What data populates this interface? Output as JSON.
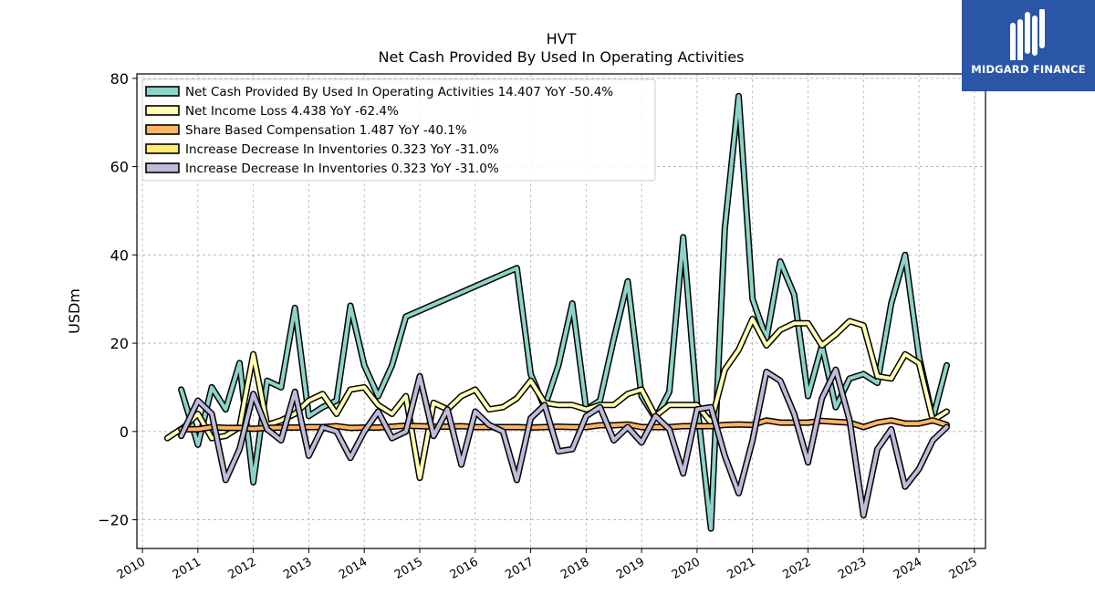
{
  "chart_data": {
    "type": "line",
    "title": "HVT",
    "subtitle": "Net Cash Provided By Used In Operating Activities",
    "ylabel": "USDm",
    "xlabel": "",
    "xlim": [
      2009.9,
      2025.2
    ],
    "ylim": [
      -26.5,
      81
    ],
    "yticks": [
      -20,
      0,
      20,
      40,
      60,
      80
    ],
    "xticks": [
      2010,
      2011,
      2012,
      2013,
      2014,
      2015,
      2016,
      2017,
      2018,
      2019,
      2020,
      2021,
      2022,
      2023,
      2024,
      2025
    ],
    "grid": true,
    "legend_position": "top-left",
    "series": [
      {
        "name": "Net Cash Provided By Used In Operating Activities  14.407 YoY -50.4%",
        "color": "#8dd3c7",
        "x": [
          2010.7,
          2011.0,
          2011.25,
          2011.5,
          2011.75,
          2012.0,
          2012.25,
          2012.5,
          2012.75,
          2013.0,
          2013.25,
          2013.5,
          2013.75,
          2014.0,
          2014.25,
          2014.5,
          2014.75,
          2016.75,
          2017.0,
          2017.25,
          2017.5,
          2017.75,
          2018.0,
          2018.25,
          2018.5,
          2018.75,
          2019.0,
          2019.25,
          2019.5,
          2019.75,
          2020.0,
          2020.25,
          2020.5,
          2020.75,
          2021.0,
          2021.25,
          2021.5,
          2021.75,
          2022.0,
          2022.25,
          2022.5,
          2022.75,
          2023.0,
          2023.25,
          2023.5,
          2023.75,
          2024.0,
          2024.25,
          2024.5
        ],
        "y": [
          9.5,
          -3,
          10,
          5,
          15.5,
          -11.5,
          11.5,
          10,
          28,
          3.5,
          5.5,
          7,
          28.5,
          15,
          8,
          15,
          26,
          37,
          13,
          5.5,
          15,
          29,
          5,
          7,
          21,
          34,
          8,
          3,
          9,
          44,
          6,
          -22,
          46,
          76,
          30,
          21,
          38.5,
          31,
          8,
          19.5,
          5.5,
          12,
          13,
          11,
          29,
          40,
          17,
          3,
          15
        ]
      },
      {
        "name": "Net Income Loss  4.438 YoY -62.4%",
        "color": "#ffffb3",
        "x": [
          2010.45,
          2010.75,
          2011.0,
          2011.25,
          2011.5,
          2011.75,
          2012.0,
          2012.25,
          2012.5,
          2012.75,
          2013.0,
          2013.25,
          2013.5,
          2013.75,
          2014.0,
          2014.25,
          2014.5,
          2014.75,
          2015.0,
          2015.25,
          2015.5,
          2015.75,
          2016.0,
          2016.25,
          2016.5,
          2016.75,
          2017.0,
          2017.25,
          2017.5,
          2017.75,
          2018.0,
          2018.25,
          2018.5,
          2018.75,
          2019.0,
          2019.25,
          2019.5,
          2019.75,
          2020.0,
          2020.25,
          2020.5,
          2020.75,
          2021.0,
          2021.25,
          2021.5,
          2021.75,
          2022.0,
          2022.25,
          2022.5,
          2022.75,
          2023.0,
          2023.25,
          2023.5,
          2023.75,
          2024.0,
          2024.25,
          2024.5
        ],
        "y": [
          -1.5,
          1,
          4,
          -1.5,
          -1,
          1,
          17.5,
          1.5,
          2.5,
          4,
          7,
          8.5,
          4,
          9.5,
          10,
          6,
          4,
          8,
          -10.5,
          6.5,
          5,
          8,
          9.5,
          5,
          5.5,
          7.5,
          11.5,
          6.5,
          6,
          6,
          5,
          6,
          6,
          8.5,
          9.5,
          3.5,
          6,
          6,
          6,
          2,
          14,
          18.5,
          25.5,
          19.5,
          23,
          24.5,
          24.5,
          19.5,
          22,
          25,
          24,
          12.5,
          12,
          17.5,
          15.5,
          2.5,
          4.5
        ]
      },
      {
        "name": "Share Based Compensation  1.487 YoY -40.1%",
        "color": "#fdb462",
        "x": [
          2010.7,
          2011.0,
          2011.25,
          2011.5,
          2011.75,
          2012.0,
          2012.25,
          2012.5,
          2012.75,
          2013.0,
          2013.25,
          2013.5,
          2013.75,
          2014.0,
          2014.25,
          2014.5,
          2014.75,
          2015.0,
          2015.25,
          2015.5,
          2015.75,
          2016.0,
          2016.25,
          2016.5,
          2016.75,
          2017.0,
          2017.25,
          2017.5,
          2017.75,
          2018.0,
          2018.25,
          2018.5,
          2018.75,
          2019.0,
          2019.25,
          2019.5,
          2019.75,
          2020.0,
          2020.25,
          2020.5,
          2020.75,
          2021.0,
          2021.25,
          2021.5,
          2021.75,
          2022.0,
          2022.25,
          2022.5,
          2022.75,
          2023.0,
          2023.25,
          2023.5,
          2023.75,
          2024.0,
          2024.25,
          2024.5
        ],
        "y": [
          0.5,
          0.5,
          1,
          0.8,
          0.8,
          0.6,
          0.8,
          0.9,
          0.9,
          1,
          1,
          1.2,
          0.8,
          0.9,
          0.9,
          1.1,
          1.3,
          1.2,
          1.1,
          1.1,
          1.2,
          1,
          1,
          1,
          1,
          0.9,
          1,
          1.1,
          1,
          1,
          1.4,
          1.4,
          1.6,
          1,
          1,
          1,
          1.2,
          1.2,
          1.2,
          1.5,
          1.6,
          1.5,
          2.5,
          2,
          2,
          2,
          2.4,
          2.2,
          2,
          1,
          2,
          2.5,
          1.8,
          1.8,
          2.5,
          1.5
        ]
      },
      {
        "name": "Increase Decrease In Inventories  0.323 YoY -31.0%",
        "color": "#ffed6f",
        "x": [],
        "y": []
      },
      {
        "name": "Increase Decrease In Inventories  0.323 YoY -31.0%",
        "color": "#bebada",
        "x": [
          2010.7,
          2011.0,
          2011.25,
          2011.5,
          2011.75,
          2012.0,
          2012.25,
          2012.5,
          2012.75,
          2013.0,
          2013.25,
          2013.5,
          2013.75,
          2014.0,
          2014.25,
          2014.5,
          2014.75,
          2015.0,
          2015.25,
          2015.5,
          2015.75,
          2016.0,
          2016.25,
          2016.5,
          2016.75,
          2017.0,
          2017.25,
          2017.5,
          2017.75,
          2018.0,
          2018.25,
          2018.5,
          2018.75,
          2019.0,
          2019.25,
          2019.5,
          2019.75,
          2020.0,
          2020.25,
          2020.5,
          2020.75,
          2021.0,
          2021.25,
          2021.5,
          2021.75,
          2022.0,
          2022.25,
          2022.5,
          2022.75,
          2023.0,
          2023.25,
          2023.5,
          2023.75,
          2024.0,
          2024.25,
          2024.5
        ],
        "y": [
          -1,
          7,
          4,
          -11,
          -4,
          8.5,
          0.5,
          -2,
          9,
          -5.5,
          1,
          0,
          -6,
          0,
          4.5,
          -1.5,
          0,
          12.5,
          -1,
          5,
          -7.5,
          4.5,
          1.5,
          0,
          -11,
          3,
          6,
          -4.5,
          -4,
          3.5,
          5.5,
          -2,
          1,
          -2.5,
          3.5,
          0.5,
          -9.5,
          5,
          5.5,
          -5.5,
          -14,
          -2,
          13.5,
          11.5,
          4,
          -7,
          7.5,
          14,
          2.5,
          -19,
          -4,
          0.5,
          -12.5,
          -8.5,
          -2,
          1
        ]
      }
    ]
  },
  "logo": {
    "text": "MIDGARD FINANCE"
  }
}
